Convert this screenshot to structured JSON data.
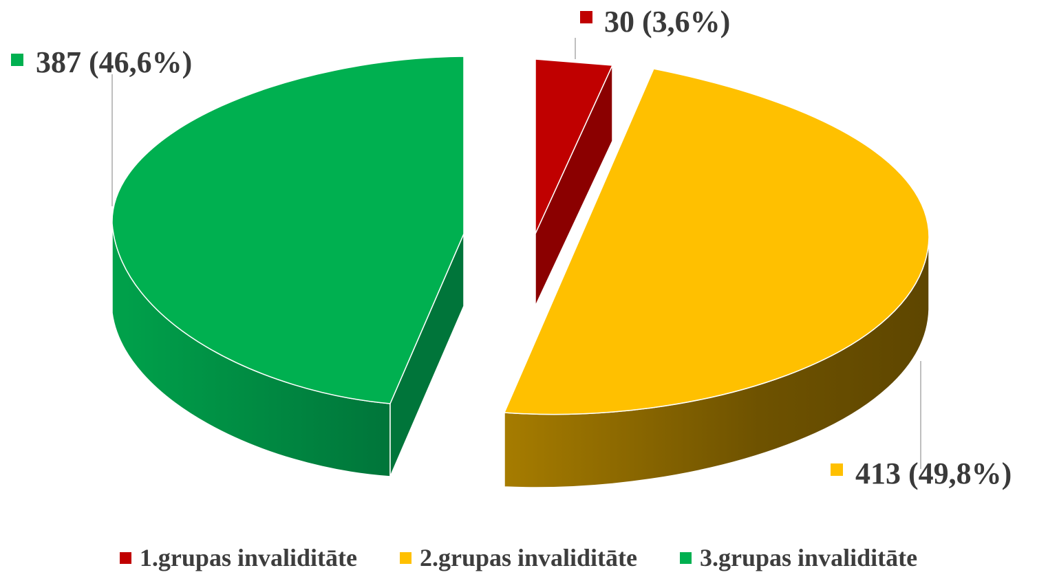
{
  "chart_data": {
    "type": "pie",
    "style": "3d-exploded",
    "series": [
      {
        "name": "1.grupas invaliditāte",
        "value": 30,
        "percent": "3,6%",
        "label": "30 (3,6%)",
        "color": "#c00000",
        "side_color": "#8b0000"
      },
      {
        "name": "2.grupas invaliditāte",
        "value": 413,
        "percent": "49,8%",
        "label": "413 (49,8%)",
        "color": "#ffc000",
        "side_color": "#7a5a00"
      },
      {
        "name": "3.grupas invaliditāte",
        "value": 387,
        "percent": "46,6%",
        "label": "387 (46,6%)",
        "color": "#00b050",
        "side_color": "#00803a"
      }
    ],
    "legend_position": "bottom"
  }
}
